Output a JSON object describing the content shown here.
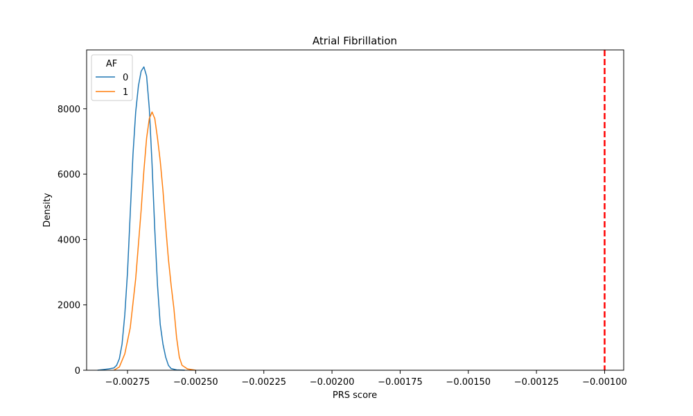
{
  "chart_data": {
    "type": "line",
    "title": "Atrial Fibrillation",
    "xlabel": "PRS score",
    "ylabel": "Density",
    "xlim": [
      -0.0029,
      -0.00093
    ],
    "ylim": [
      0,
      9800
    ],
    "x_ticks": [
      {
        "value": -0.00275,
        "label": "−0.00275"
      },
      {
        "value": -0.0025,
        "label": "−0.00250"
      },
      {
        "value": -0.00225,
        "label": "−0.00225"
      },
      {
        "value": -0.002,
        "label": "−0.00200"
      },
      {
        "value": -0.00175,
        "label": "−0.00175"
      },
      {
        "value": -0.0015,
        "label": "−0.00150"
      },
      {
        "value": -0.00125,
        "label": "−0.00125"
      },
      {
        "value": -0.001,
        "label": "−0.00100"
      }
    ],
    "y_ticks": [
      {
        "value": 0,
        "label": "0"
      },
      {
        "value": 2000,
        "label": "2000"
      },
      {
        "value": 4000,
        "label": "4000"
      },
      {
        "value": 6000,
        "label": "6000"
      },
      {
        "value": 8000,
        "label": "8000"
      }
    ],
    "grid": false,
    "legend": {
      "title": "AF",
      "placement": "top-left"
    },
    "series": [
      {
        "name": "0",
        "color": "#1f77b4",
        "points": [
          [
            -0.00286,
            0
          ],
          [
            -0.00284,
            20
          ],
          [
            -0.00282,
            40
          ],
          [
            -0.0028,
            70
          ],
          [
            -0.00279,
            150
          ],
          [
            -0.00278,
            350
          ],
          [
            -0.00277,
            800
          ],
          [
            -0.00276,
            1700
          ],
          [
            -0.00275,
            3000
          ],
          [
            -0.00274,
            4800
          ],
          [
            -0.00273,
            6600
          ],
          [
            -0.00272,
            7900
          ],
          [
            -0.00271,
            8700
          ],
          [
            -0.0027,
            9150
          ],
          [
            -0.00269,
            9280
          ],
          [
            -0.00268,
            9000
          ],
          [
            -0.00267,
            8000
          ],
          [
            -0.00266,
            6300
          ],
          [
            -0.00265,
            4300
          ],
          [
            -0.00264,
            2600
          ],
          [
            -0.00263,
            1400
          ],
          [
            -0.00262,
            800
          ],
          [
            -0.00261,
            400
          ],
          [
            -0.0026,
            150
          ],
          [
            -0.00259,
            50
          ],
          [
            -0.00257,
            10
          ],
          [
            -0.00254,
            0
          ]
        ]
      },
      {
        "name": "1",
        "color": "#ff7f0e",
        "points": [
          [
            -0.0028,
            0
          ],
          [
            -0.00278,
            100
          ],
          [
            -0.00276,
            500
          ],
          [
            -0.00274,
            1300
          ],
          [
            -0.00272,
            2800
          ],
          [
            -0.0027,
            4900
          ],
          [
            -0.00269,
            6100
          ],
          [
            -0.00268,
            7100
          ],
          [
            -0.00267,
            7700
          ],
          [
            -0.00266,
            7900
          ],
          [
            -0.00265,
            7700
          ],
          [
            -0.00264,
            7100
          ],
          [
            -0.00263,
            6400
          ],
          [
            -0.00262,
            5500
          ],
          [
            -0.00261,
            4400
          ],
          [
            -0.0026,
            3400
          ],
          [
            -0.00259,
            2600
          ],
          [
            -0.00258,
            1900
          ],
          [
            -0.00257,
            1000
          ],
          [
            -0.00256,
            400
          ],
          [
            -0.00255,
            150
          ],
          [
            -0.00253,
            40
          ],
          [
            -0.0025,
            0
          ]
        ]
      }
    ],
    "annotations": [
      {
        "type": "vertical-line",
        "x": -0.001,
        "color": "#ff0000",
        "style": "dashed"
      }
    ]
  }
}
